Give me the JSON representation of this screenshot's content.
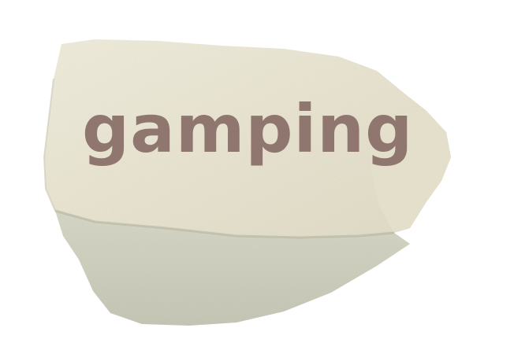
{
  "image": {
    "caption": "gamping",
    "caption_color": "#8f7770",
    "background_color": "#ffffff",
    "stone_colors": {
      "top_face": "#ece8d6",
      "top_face_light": "#f4f1e4",
      "bottom_face": "#d2d2c2",
      "bottom_face_shadow": "#bfc0ae",
      "edge_shadow": "#a9a995"
    }
  }
}
